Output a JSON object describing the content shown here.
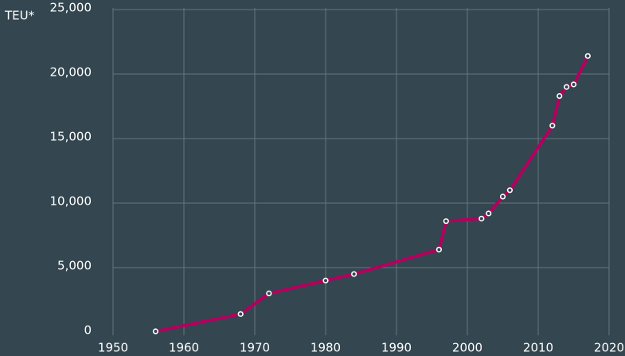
{
  "chart_data": {
    "type": "line",
    "y_label": "TEU*",
    "x": [
      1956,
      1968,
      1972,
      1980,
      1984,
      1996,
      1997,
      2002,
      2003,
      2005,
      2006,
      2012,
      2013,
      2014,
      2015,
      2017
    ],
    "series": [
      {
        "color": "#b3005e",
        "values": [
          60,
          1400,
          3000,
          4000,
          4500,
          6400,
          8600,
          8800,
          9200,
          10500,
          11000,
          16000,
          18300,
          19000,
          19200,
          21400
        ]
      }
    ],
    "xlim": [
      1950,
      2020
    ],
    "xticks": [
      1950,
      1960,
      1970,
      1980,
      1990,
      2000,
      2010,
      2020
    ],
    "ylim": [
      0,
      25000
    ],
    "yticks": [
      0,
      {
        "value": 5000,
        "label": "5,000"
      },
      {
        "value": 10000,
        "label": "10,000"
      },
      {
        "value": 15000,
        "label": "15,000"
      },
      {
        "value": 20000,
        "label": "20,000"
      },
      {
        "value": 25000,
        "label": "25,000"
      }
    ],
    "grid": true
  }
}
